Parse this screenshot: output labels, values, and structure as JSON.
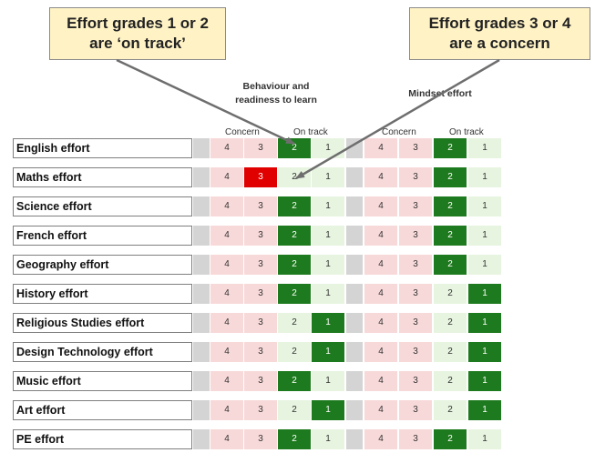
{
  "callouts": {
    "left": [
      "Effort grades 1 or 2",
      "are ‘on track’"
    ],
    "right": [
      "Effort grades 3 or 4",
      "are a concern"
    ]
  },
  "sections": {
    "behaviour": {
      "title_lines": [
        "Behaviour and",
        "readiness to learn"
      ],
      "concern": "Concern",
      "on_track": "On track"
    },
    "mindset": {
      "title_lines": [
        "Mindset effort"
      ],
      "concern": "Concern",
      "on_track": "On track"
    }
  },
  "grades": [
    "4",
    "3",
    "2",
    "1"
  ],
  "colors": {
    "selected_green": "#1e7a1e",
    "selected_red": "#e00000",
    "concern_bg": "#f8d9d9",
    "on_track_bg": "#e7f4e0"
  },
  "rows": [
    {
      "subject": "English effort",
      "behaviour": "2",
      "mindset": "2"
    },
    {
      "subject": "Maths effort",
      "behaviour": "3",
      "mindset": "2"
    },
    {
      "subject": "Science effort",
      "behaviour": "2",
      "mindset": "2"
    },
    {
      "subject": "French effort",
      "behaviour": "2",
      "mindset": "2"
    },
    {
      "subject": "Geography effort",
      "behaviour": "2",
      "mindset": "2"
    },
    {
      "subject": "History effort",
      "behaviour": "2",
      "mindset": "1"
    },
    {
      "subject": "Religious Studies effort",
      "behaviour": "1",
      "mindset": "1"
    },
    {
      "subject": "Design Technology effort",
      "behaviour": "1",
      "mindset": "1"
    },
    {
      "subject": "Music effort",
      "behaviour": "2",
      "mindset": "1"
    },
    {
      "subject": "Art effort",
      "behaviour": "1",
      "mindset": "1"
    },
    {
      "subject": "PE effort",
      "behaviour": "2",
      "mindset": "2"
    }
  ]
}
